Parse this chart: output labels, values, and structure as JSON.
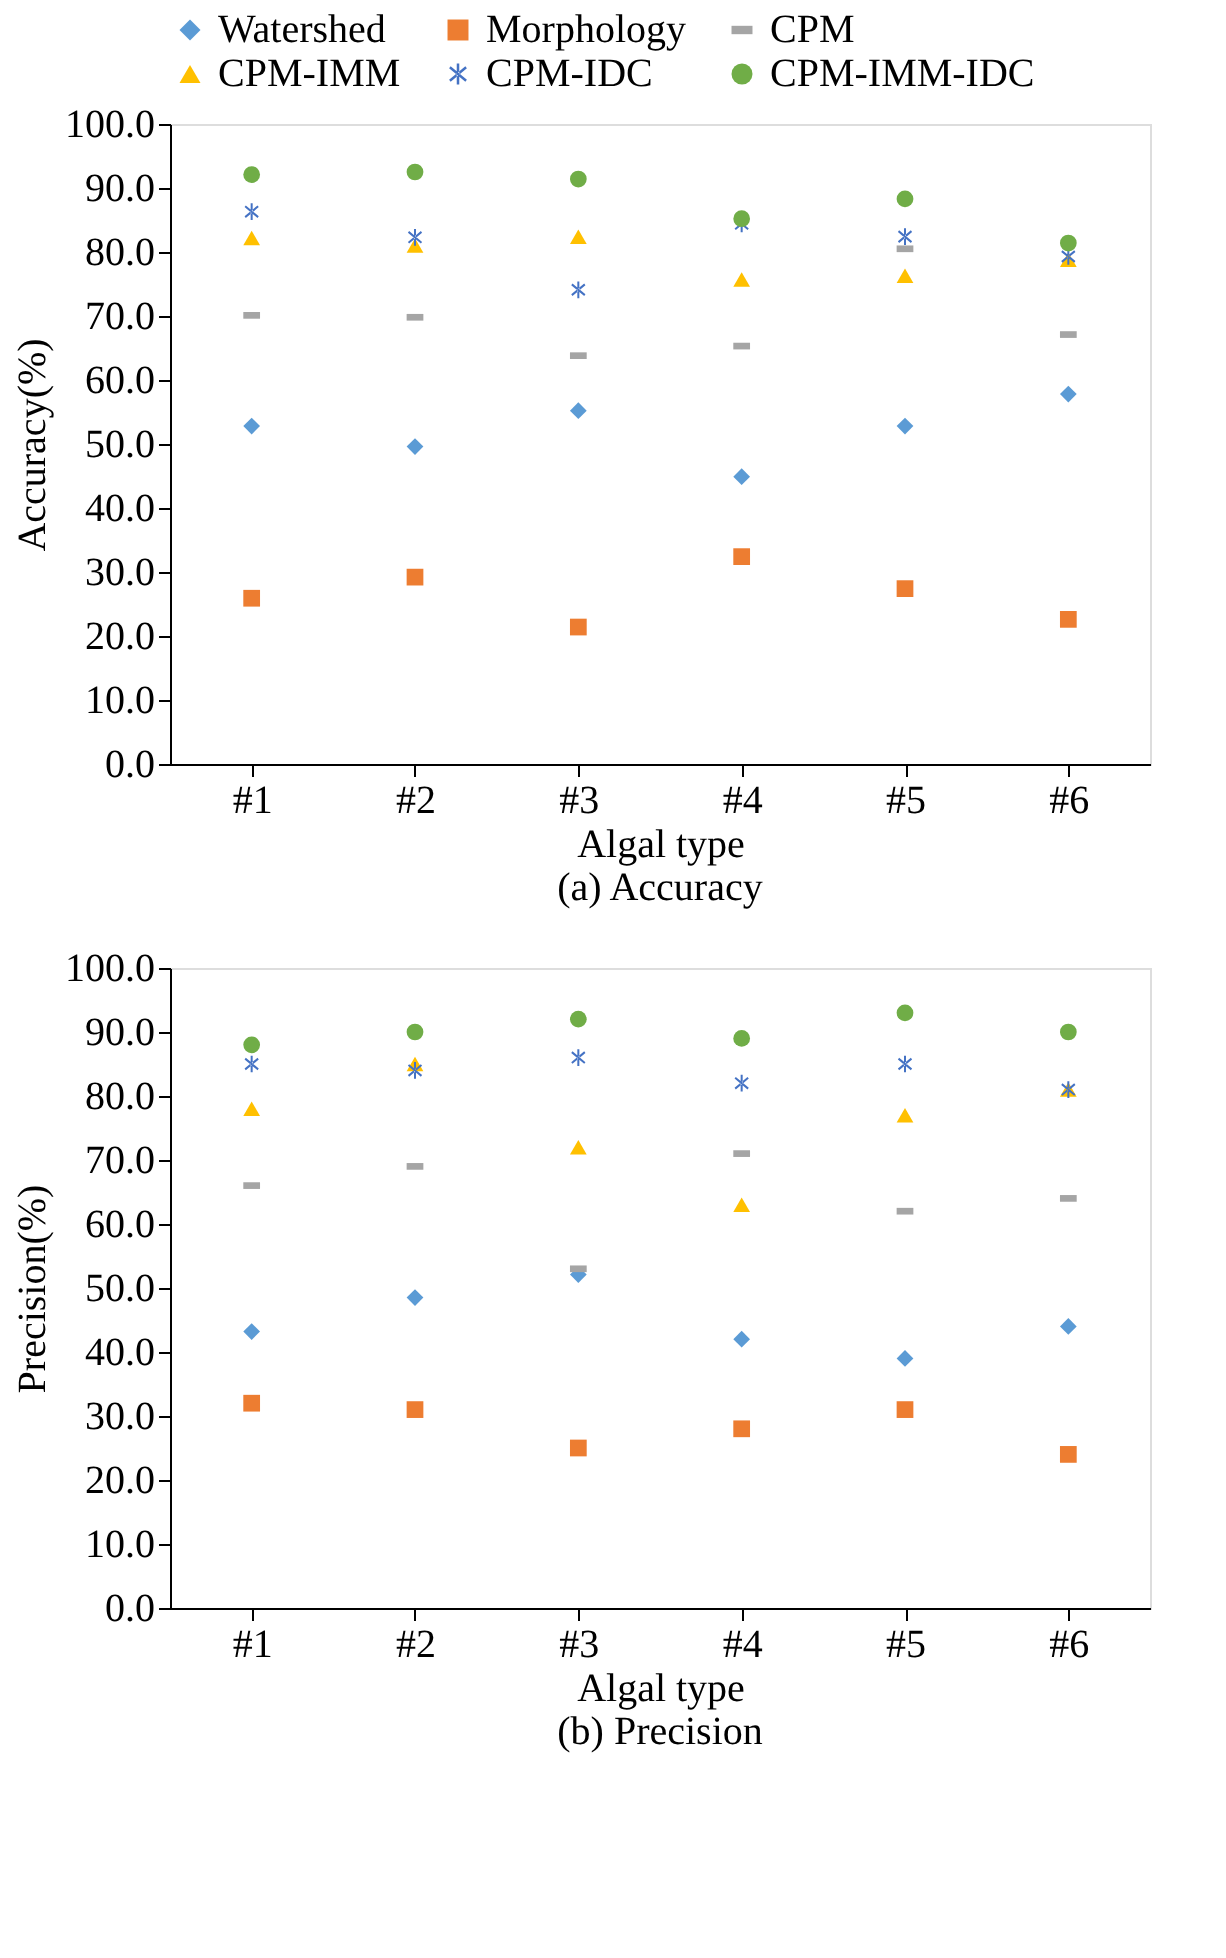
{
  "chart_data": [
    {
      "type": "scatter",
      "title": "(a) Accuracy",
      "xlabel": "Algal type",
      "ylabel": "Accuracy(%)",
      "categories": [
        "#1",
        "#2",
        "#3",
        "#4",
        "#5",
        "#6"
      ],
      "ylim": [
        0,
        100
      ],
      "yticks": [
        {
          "value": 0,
          "label": "0.0"
        },
        {
          "value": 10,
          "label": "10.0"
        },
        {
          "value": 20,
          "label": "20.0"
        },
        {
          "value": 30,
          "label": "30.0"
        },
        {
          "value": 40,
          "label": "40.0"
        },
        {
          "value": 50,
          "label": "50.0"
        },
        {
          "value": 60,
          "label": "60.0"
        },
        {
          "value": 70,
          "label": "70.0"
        },
        {
          "value": 80,
          "label": "80.0"
        },
        {
          "value": 90,
          "label": "90.0"
        },
        {
          "value": 100,
          "label": "100.0"
        }
      ],
      "grid": false,
      "legend": "top",
      "series": [
        {
          "name": "Watershed",
          "color": "#5b9bd5",
          "marker": "diamond",
          "values": [
            52.8,
            49.6,
            55.2,
            44.9,
            52.8,
            57.8
          ]
        },
        {
          "name": "Morphology",
          "color": "#ed7d31",
          "marker": "square",
          "values": [
            25.9,
            29.2,
            21.4,
            32.4,
            27.4,
            22.6
          ]
        },
        {
          "name": "CPM",
          "color": "#a5a5a5",
          "values": [
            70.1,
            69.8,
            63.8,
            65.3,
            80.5,
            67.1
          ]
        },
        {
          "name": "CPM-IMM",
          "color": "#ffc000",
          "marker": "triangle",
          "values": [
            82.2,
            81.0,
            82.4,
            75.7,
            76.3,
            78.8
          ]
        },
        {
          "name": "CPM-IDC",
          "color": "#4472c4",
          "marker": "cross",
          "values": [
            86.3,
            82.3,
            74.1,
            84.4,
            82.4,
            79.3
          ]
        },
        {
          "name": "CPM-IMM-IDC",
          "color": "#70ad47",
          "marker": "circle",
          "values": [
            92.1,
            92.5,
            91.4,
            85.2,
            88.3,
            81.4
          ]
        }
      ]
    },
    {
      "type": "scatter",
      "title": "(b) Precision",
      "xlabel": "Algal type",
      "ylabel": "Precision(%)",
      "categories": [
        "#1",
        "#2",
        "#3",
        "#4",
        "#5",
        "#6"
      ],
      "ylim": [
        0,
        100
      ],
      "yticks": [
        {
          "value": 0,
          "label": "0.0"
        },
        {
          "value": 10,
          "label": "10.0"
        },
        {
          "value": 20,
          "label": "20.0"
        },
        {
          "value": 30,
          "label": "30.0"
        },
        {
          "value": 40,
          "label": "40.0"
        },
        {
          "value": 50,
          "label": "50.0"
        },
        {
          "value": 60,
          "label": "60.0"
        },
        {
          "value": 70,
          "label": "70.0"
        },
        {
          "value": 80,
          "label": "80.0"
        },
        {
          "value": 90,
          "label": "90.0"
        },
        {
          "value": 100,
          "label": "100.0"
        }
      ],
      "grid": false,
      "legend": "top",
      "series": [
        {
          "name": "Watershed",
          "color": "#5b9bd5",
          "marker": "diamond",
          "values": [
            43.2,
            48.5,
            52.1,
            42,
            39,
            44
          ]
        },
        {
          "name": "Morphology",
          "color": "#ed7d31",
          "marker": "square",
          "values": [
            32,
            31,
            25,
            28,
            31,
            24
          ]
        },
        {
          "name": "CPM",
          "color": "#a5a5a5",
          "values": [
            66,
            69,
            53,
            71,
            62,
            64
          ]
        },
        {
          "name": "CPM-IMM",
          "color": "#ffc000",
          "marker": "triangle",
          "values": [
            78,
            85,
            72,
            63,
            77,
            81
          ]
        },
        {
          "name": "CPM-IDC",
          "color": "#4472c4",
          "marker": "cross",
          "values": [
            85,
            84,
            86,
            82,
            85,
            81
          ]
        },
        {
          "name": "CPM-IMM-IDC",
          "color": "#70ad47",
          "marker": "circle",
          "values": [
            88,
            90,
            92,
            89,
            93,
            90
          ]
        }
      ]
    }
  ]
}
